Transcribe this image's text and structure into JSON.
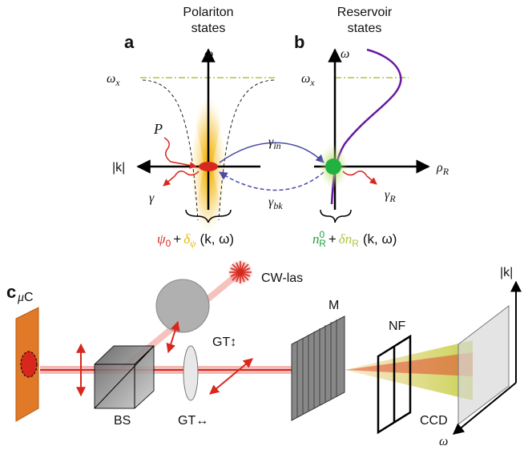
{
  "panel_a": {
    "label": "a",
    "title": [
      "Polariton",
      "states"
    ],
    "omega": "ω",
    "omega_x": {
      "symbol": "ω",
      "sub": "x"
    },
    "k_axis": "|k|",
    "pump": "P",
    "decay": "γ",
    "formula": {
      "psi": "ψ",
      "psi_sub": "0",
      "plus": "+",
      "delta": "δ",
      "delta_sub": "ψ",
      "args": "(k, ω)"
    }
  },
  "panel_b": {
    "label": "b",
    "title": [
      "Reservoir",
      "states"
    ],
    "omega": "ω",
    "omega_x": {
      "symbol": "ω",
      "sub": "x"
    },
    "rho": {
      "symbol": "ρ",
      "sub": "R"
    },
    "decay": {
      "symbol": "γ",
      "sub": "R"
    },
    "formula": {
      "n": "n",
      "n_sup": "0",
      "n_sub": "R",
      "plus": "+",
      "delta": "δn",
      "delta_sub": "R",
      "args": "(k, ω)"
    }
  },
  "coupling": {
    "in": {
      "symbol": "γ",
      "sub": "in"
    },
    "bk": {
      "symbol": "γ",
      "sub": "bk"
    }
  },
  "panel_c": {
    "label": "c",
    "cw_laser": "CW-las",
    "gt_vertical": "GT↕",
    "microcavity": {
      "symbol": "μ",
      "text": "C"
    },
    "beam_splitter": "BS",
    "gt_horizontal": "GT↔",
    "mirror": "M",
    "notch_filter": "NF",
    "ccd": "CCD",
    "k_axis": "|k|",
    "omega": "ω"
  }
}
